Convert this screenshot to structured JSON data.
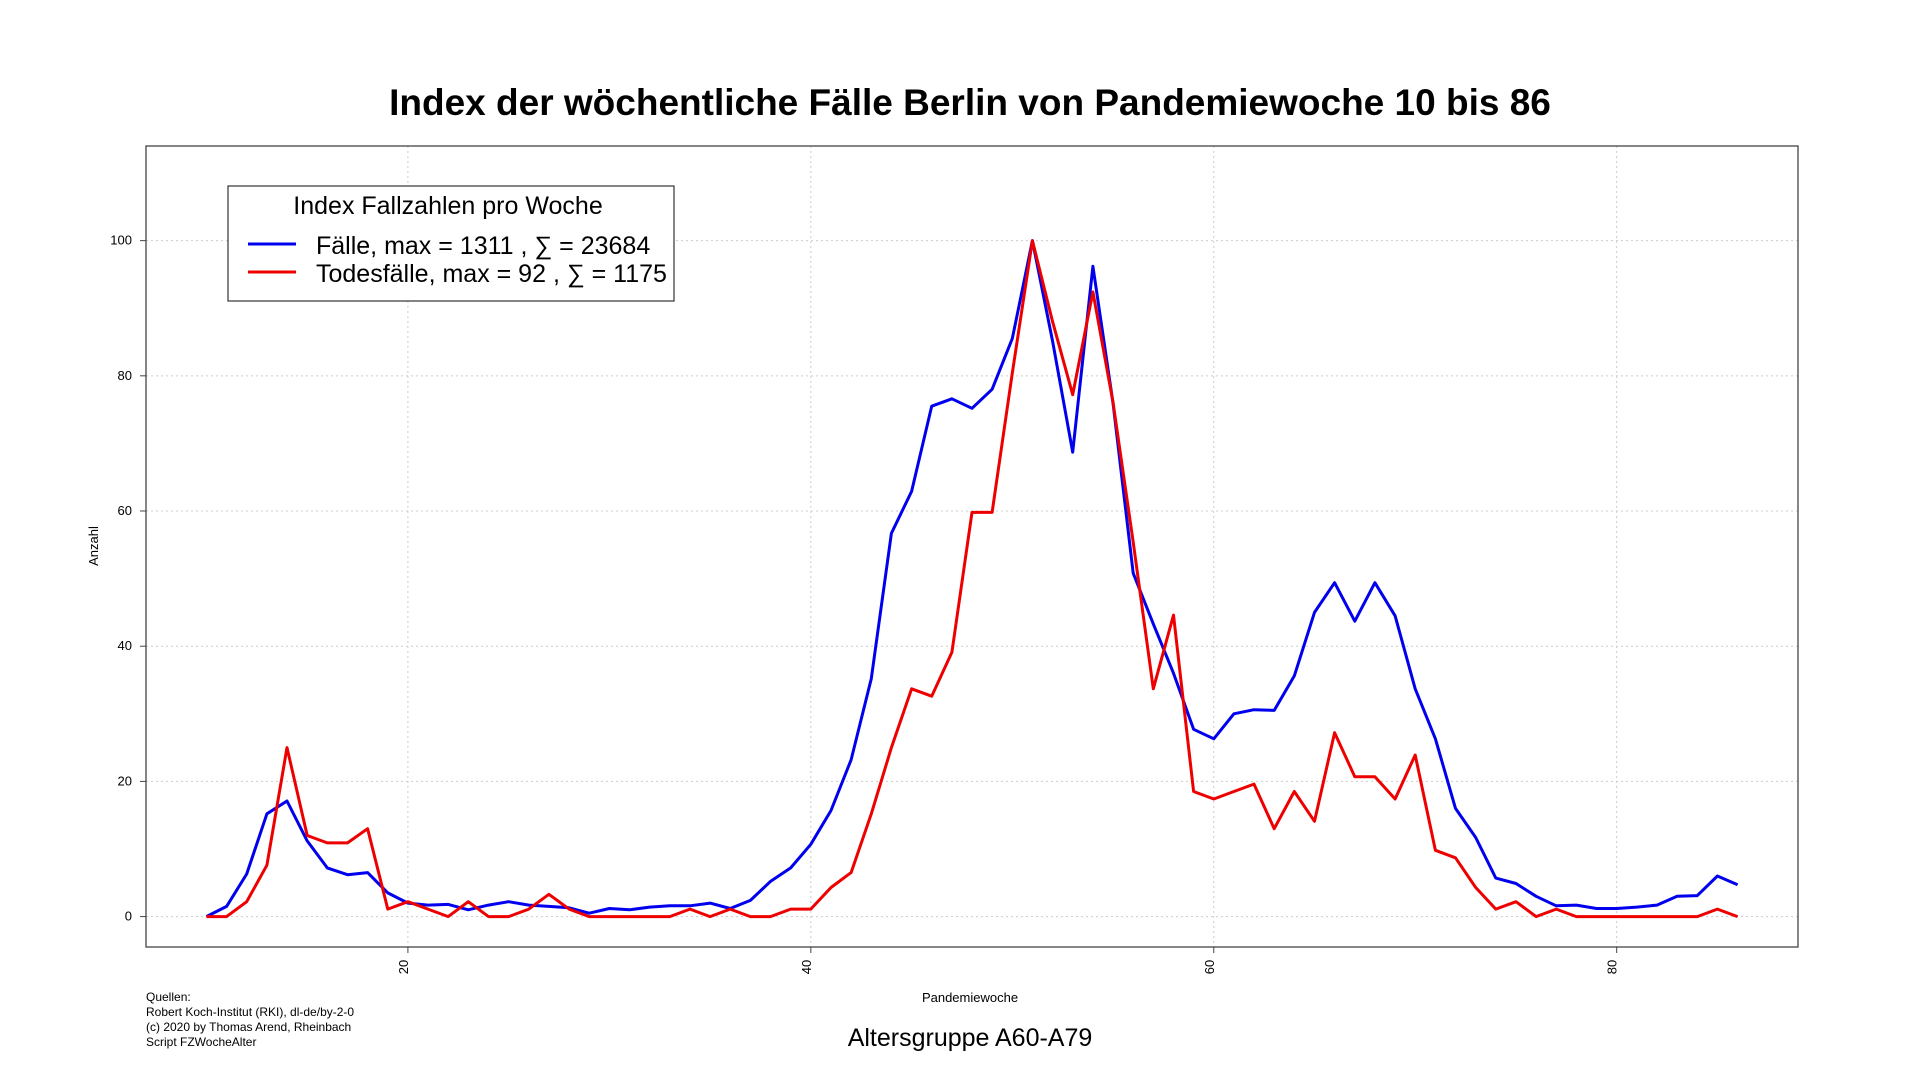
{
  "chart_data": {
    "type": "line",
    "title": "Index der wöchentliche Fälle Berlin von Pandemiewoche 10 bis 86",
    "xlabel": "Pandemiewoche",
    "ylabel": "Anzahl",
    "subtitle": "Altersgruppe A60-A79",
    "xlim": [
      7,
      89
    ],
    "ylim": [
      -4.5,
      114
    ],
    "xticks": [
      20,
      40,
      60,
      80
    ],
    "yticks": [
      0,
      20,
      40,
      60,
      80,
      100
    ],
    "grid": true,
    "legend": {
      "title": "Index Fallzahlen pro Woche",
      "position": "top-left",
      "entries": [
        "Fälle, max = 1311 ,  ∑  = 23684",
        "Todesfälle, max = 92 ,  ∑  = 1175"
      ]
    },
    "x": [
      10,
      11,
      12,
      13,
      14,
      15,
      16,
      17,
      18,
      19,
      20,
      21,
      22,
      23,
      24,
      25,
      26,
      27,
      28,
      29,
      30,
      31,
      32,
      33,
      34,
      35,
      36,
      37,
      38,
      39,
      40,
      41,
      42,
      43,
      44,
      45,
      46,
      47,
      48,
      49,
      50,
      51,
      52,
      53,
      54,
      55,
      56,
      57,
      58,
      59,
      60,
      61,
      62,
      63,
      64,
      65,
      66,
      67,
      68,
      69,
      70,
      71,
      72,
      73,
      74,
      75,
      76,
      77,
      78,
      79,
      80,
      81,
      82,
      83,
      84,
      85,
      86
    ],
    "series": [
      {
        "name": "Fälle, max = 1311 ,  ∑  = 23684",
        "color": "#0000ee",
        "values": [
          0,
          1.5,
          6.3,
          15.2,
          17.1,
          11.2,
          7.2,
          6.2,
          6.5,
          3.5,
          2.0,
          1.7,
          1.8,
          1.0,
          1.7,
          2.2,
          1.7,
          1.5,
          1.3,
          0.5,
          1.2,
          1.0,
          1.4,
          1.6,
          1.6,
          2.0,
          1.2,
          2.4,
          5.2,
          7.2,
          10.7,
          15.7,
          23.2,
          35.2,
          56.7,
          62.9,
          75.5,
          76.6,
          75.2,
          78.0,
          85.5,
          100,
          85.1,
          68.7,
          96.2,
          76.0,
          50.8,
          43.3,
          36.0,
          27.7,
          26.3,
          30.0,
          30.6,
          30.5,
          35.6,
          45.0,
          49.4,
          43.7,
          49.4,
          44.5,
          33.7,
          26.3,
          16.0,
          11.7,
          5.7,
          4.9,
          3.0,
          1.6,
          1.7,
          1.2,
          1.2,
          1.4,
          1.7,
          3.0,
          3.1,
          6.0,
          4.7
        ]
      },
      {
        "name": "Todesfälle, max = 92 ,  ∑  = 1175",
        "color": "#ee0000",
        "values": [
          0,
          0,
          2.2,
          7.6,
          25,
          12.0,
          10.9,
          10.9,
          13.0,
          1.1,
          2.2,
          1.1,
          0,
          2.2,
          0,
          0,
          1.1,
          3.3,
          1.1,
          0,
          0,
          0,
          0,
          0,
          1.1,
          0,
          1.1,
          0,
          0,
          1.1,
          1.1,
          4.3,
          6.5,
          15.2,
          25,
          33.7,
          32.6,
          39.1,
          59.8,
          59.8,
          80.4,
          100,
          88.0,
          77.2,
          92.4,
          76.1,
          55.4,
          33.7,
          44.6,
          18.5,
          17.4,
          18.5,
          19.6,
          13.0,
          18.5,
          14.1,
          27.2,
          20.7,
          20.7,
          17.4,
          23.9,
          9.8,
          8.7,
          4.3,
          1.1,
          2.2,
          0,
          1.1,
          0,
          0,
          0,
          0,
          0,
          0,
          0,
          1.1,
          0
        ]
      }
    ]
  },
  "sources": {
    "heading": "Quellen:",
    "lines": [
      "Robert Koch-Institut (RKI), dl-de/by-2-0",
      "(c) 2020 by Thomas Arend, Rheinbach",
      "Script FZWocheAlter"
    ]
  }
}
